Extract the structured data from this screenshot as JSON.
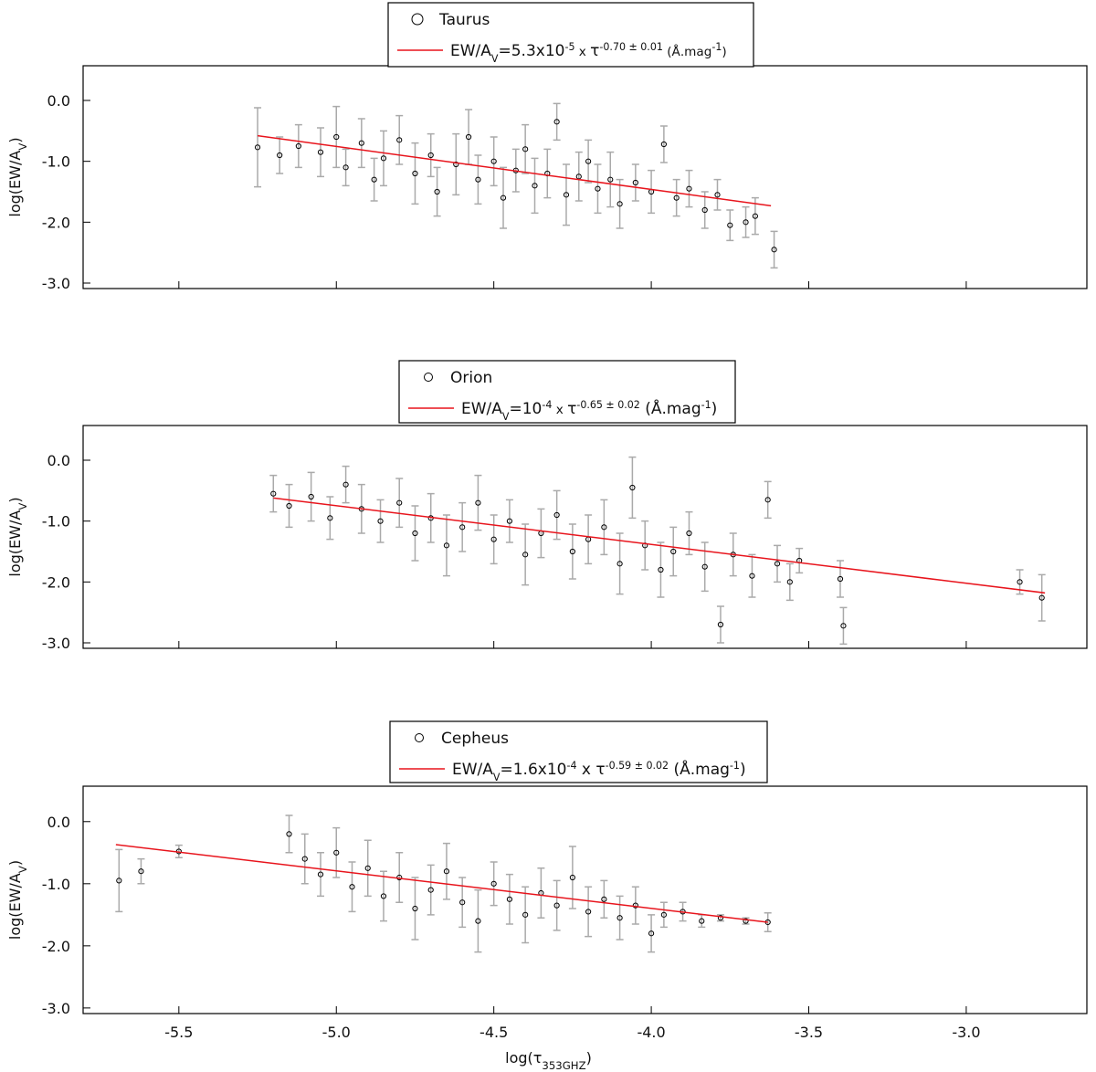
{
  "chart_data": [
    {
      "type": "scatter",
      "ylabel": [
        "log(EW/A",
        "V",
        ")"
      ],
      "ylabel_shift": [
        "base",
        "sub",
        "base"
      ],
      "xlim": [
        -5.804,
        -2.617
      ],
      "ylim": [
        -3.09,
        0.57
      ],
      "xticks": [
        -5.5,
        -5,
        -4.5,
        -4,
        -3.5,
        -3
      ],
      "show_xtick_labels": false,
      "yticks": [
        {
          "value": 0,
          "label": "0.0"
        },
        {
          "value": -1,
          "label": "-1.0"
        },
        {
          "value": -2,
          "label": "-2.0"
        },
        {
          "value": -3,
          "label": "-3.0"
        }
      ],
      "series": [
        {
          "name": [
            "Taurus"
          ],
          "name_shift": [
            "base"
          ],
          "color": "#000000",
          "error_color": "#aaaaaa",
          "x": [
            -5.25,
            -5.18,
            -5.12,
            -5.05,
            -5.0,
            -4.97,
            -4.92,
            -4.88,
            -4.85,
            -4.8,
            -4.75,
            -4.7,
            -4.68,
            -4.62,
            -4.58,
            -4.55,
            -4.5,
            -4.47,
            -4.43,
            -4.4,
            -4.37,
            -4.33,
            -4.3,
            -4.27,
            -4.23,
            -4.2,
            -4.17,
            -4.13,
            -4.1,
            -4.05,
            -4.0,
            -3.96,
            -3.92,
            -3.88,
            -3.83,
            -3.79,
            -3.75,
            -3.7,
            -3.67,
            -3.61
          ],
          "values": [
            -0.77,
            -0.9,
            -0.75,
            -0.85,
            -0.6,
            -1.1,
            -0.7,
            -1.3,
            -0.95,
            -0.65,
            -1.2,
            -0.9,
            -1.5,
            -1.05,
            -0.6,
            -1.3,
            -1.0,
            -1.6,
            -1.15,
            -0.8,
            -1.4,
            -1.2,
            -0.35,
            -1.55,
            -1.25,
            -1.0,
            -1.45,
            -1.3,
            -1.7,
            -1.35,
            -1.5,
            -0.72,
            -1.6,
            -1.45,
            -1.8,
            -1.55,
            -2.05,
            -2.0,
            -1.9,
            -2.45
          ],
          "errors": [
            0.65,
            0.3,
            0.35,
            0.4,
            0.5,
            0.3,
            0.4,
            0.35,
            0.45,
            0.4,
            0.5,
            0.35,
            0.4,
            0.5,
            0.45,
            0.4,
            0.4,
            0.5,
            0.35,
            0.4,
            0.45,
            0.4,
            0.3,
            0.5,
            0.4,
            0.35,
            0.4,
            0.45,
            0.4,
            0.3,
            0.35,
            0.3,
            0.3,
            0.3,
            0.3,
            0.25,
            0.25,
            0.25,
            0.3,
            0.3
          ]
        },
        {
          "name": [
            "EW/A",
            "V",
            "=5.3x10",
            "-5",
            " x ",
            "τ",
            "-0.70 ± 0.01",
            "  (Å.mag",
            "-1",
            ")"
          ],
          "name_shift": [
            "base",
            "sub",
            "base",
            "sup",
            "small",
            "base",
            "sup",
            "small",
            "sup",
            "small"
          ],
          "color": "#e8141c",
          "x": [
            -5.25,
            -3.62
          ],
          "values": [
            -0.58,
            -1.73
          ]
        }
      ]
    },
    {
      "type": "scatter",
      "ylabel": [
        "log(EW/A",
        "V",
        ")"
      ],
      "ylabel_shift": [
        "base",
        "sub",
        "base"
      ],
      "xlim": [
        -5.804,
        -2.617
      ],
      "ylim": [
        -3.09,
        0.57
      ],
      "xticks": [
        -5.5,
        -5,
        -4.5,
        -4,
        -3.5,
        -3
      ],
      "show_xtick_labels": false,
      "yticks": [
        {
          "value": 0,
          "label": "0.0"
        },
        {
          "value": -1,
          "label": "-1.0"
        },
        {
          "value": -2,
          "label": "-2.0"
        },
        {
          "value": -3,
          "label": "-3.0"
        }
      ],
      "series": [
        {
          "name": [
            "Orion"
          ],
          "name_shift": [
            "base"
          ],
          "color": "#000000",
          "error_color": "#aaaaaa",
          "x": [
            -5.2,
            -5.15,
            -5.08,
            -5.02,
            -4.97,
            -4.92,
            -4.86,
            -4.8,
            -4.75,
            -4.7,
            -4.65,
            -4.6,
            -4.55,
            -4.5,
            -4.45,
            -4.4,
            -4.35,
            -4.3,
            -4.25,
            -4.2,
            -4.15,
            -4.1,
            -4.06,
            -4.02,
            -3.97,
            -3.93,
            -3.88,
            -3.83,
            -3.78,
            -3.74,
            -3.68,
            -3.63,
            -3.6,
            -3.56,
            -3.53,
            -3.4,
            -3.39,
            -2.83,
            -2.76
          ],
          "values": [
            -0.55,
            -0.75,
            -0.6,
            -0.95,
            -0.4,
            -0.8,
            -1.0,
            -0.7,
            -1.2,
            -0.95,
            -1.4,
            -1.1,
            -0.7,
            -1.3,
            -1.0,
            -1.55,
            -1.2,
            -0.9,
            -1.5,
            -1.3,
            -1.1,
            -1.7,
            -0.45,
            -1.4,
            -1.8,
            -1.5,
            -1.2,
            -1.75,
            -2.7,
            -1.55,
            -1.9,
            -0.65,
            -1.7,
            -2.0,
            -1.65,
            -1.95,
            -2.72,
            -2.0,
            -2.26
          ],
          "errors": [
            0.3,
            0.35,
            0.4,
            0.35,
            0.3,
            0.4,
            0.35,
            0.4,
            0.45,
            0.4,
            0.5,
            0.4,
            0.45,
            0.4,
            0.35,
            0.5,
            0.4,
            0.4,
            0.45,
            0.4,
            0.45,
            0.5,
            0.5,
            0.4,
            0.45,
            0.4,
            0.35,
            0.4,
            0.3,
            0.35,
            0.35,
            0.3,
            0.3,
            0.3,
            0.2,
            0.3,
            0.3,
            0.2,
            0.38
          ]
        },
        {
          "name": [
            "EW/A",
            "V",
            "=10",
            "-4",
            " x ",
            "τ",
            "-0.65 ± 0.02",
            "  (Å.mag",
            "-1",
            ")"
          ],
          "name_shift": [
            "base",
            "sub",
            "base",
            "sup",
            "small",
            "base",
            "sup",
            "base",
            "sup",
            "base"
          ],
          "color": "#e8141c",
          "x": [
            -5.2,
            -2.75
          ],
          "values": [
            -0.62,
            -2.18
          ]
        }
      ]
    },
    {
      "type": "scatter",
      "ylabel": [
        "log(EW/A",
        "V",
        ")"
      ],
      "ylabel_shift": [
        "base",
        "sub",
        "base"
      ],
      "xlabel": [
        "log(τ",
        "353GHZ",
        ")"
      ],
      "xlabel_shift": [
        "base",
        "sub",
        "base"
      ],
      "xlim": [
        -5.804,
        -2.617
      ],
      "ylim": [
        -3.09,
        0.57
      ],
      "xticks": [
        -5.5,
        {
          "value": -5,
          "label": "-5.0"
        },
        -4.5,
        {
          "value": -4,
          "label": "-4.0"
        },
        -3.5,
        {
          "value": -3,
          "label": "-3.0"
        }
      ],
      "show_xtick_labels": true,
      "yticks": [
        {
          "value": 0,
          "label": "0.0"
        },
        {
          "value": -1,
          "label": "-1.0"
        },
        {
          "value": -2,
          "label": "-2.0"
        },
        {
          "value": -3,
          "label": "-3.0"
        }
      ],
      "series": [
        {
          "name": [
            "Cepheus"
          ],
          "name_shift": [
            "base"
          ],
          "color": "#000000",
          "error_color": "#aaaaaa",
          "x": [
            -5.69,
            -5.62,
            -5.5,
            -5.15,
            -5.1,
            -5.05,
            -5.0,
            -4.95,
            -4.9,
            -4.85,
            -4.8,
            -4.75,
            -4.7,
            -4.65,
            -4.6,
            -4.55,
            -4.5,
            -4.45,
            -4.4,
            -4.35,
            -4.3,
            -4.25,
            -4.2,
            -4.15,
            -4.1,
            -4.05,
            -4.0,
            -3.96,
            -3.9,
            -3.84,
            -3.78,
            -3.7,
            -3.63
          ],
          "values": [
            -0.95,
            -0.8,
            -0.48,
            -0.2,
            -0.6,
            -0.85,
            -0.5,
            -1.05,
            -0.75,
            -1.2,
            -0.9,
            -1.4,
            -1.1,
            -0.8,
            -1.3,
            -1.6,
            -1.0,
            -1.25,
            -1.5,
            -1.15,
            -1.35,
            -0.9,
            -1.45,
            -1.25,
            -1.55,
            -1.35,
            -1.8,
            -1.5,
            -1.45,
            -1.6,
            -1.55,
            -1.6,
            -1.62
          ],
          "errors": [
            0.5,
            0.2,
            0.1,
            0.3,
            0.4,
            0.35,
            0.4,
            0.4,
            0.45,
            0.4,
            0.4,
            0.5,
            0.4,
            0.45,
            0.4,
            0.5,
            0.35,
            0.4,
            0.45,
            0.4,
            0.4,
            0.5,
            0.4,
            0.3,
            0.35,
            0.3,
            0.3,
            0.2,
            0.15,
            0.1,
            0.05,
            0.05,
            0.15
          ]
        },
        {
          "name": [
            "EW/A",
            "V",
            "=1.6x10",
            "-4",
            " x ",
            "τ",
            "-0.59 ± 0.02",
            "  (Å.mag",
            "-1",
            ")"
          ],
          "name_shift": [
            "base",
            "sub",
            "base",
            "sup",
            "base",
            "base",
            "sup",
            "base",
            "sup",
            "base"
          ],
          "color": "#e8141c",
          "x": [
            -5.7,
            -3.63
          ],
          "values": [
            -0.37,
            -1.62
          ]
        }
      ]
    }
  ]
}
